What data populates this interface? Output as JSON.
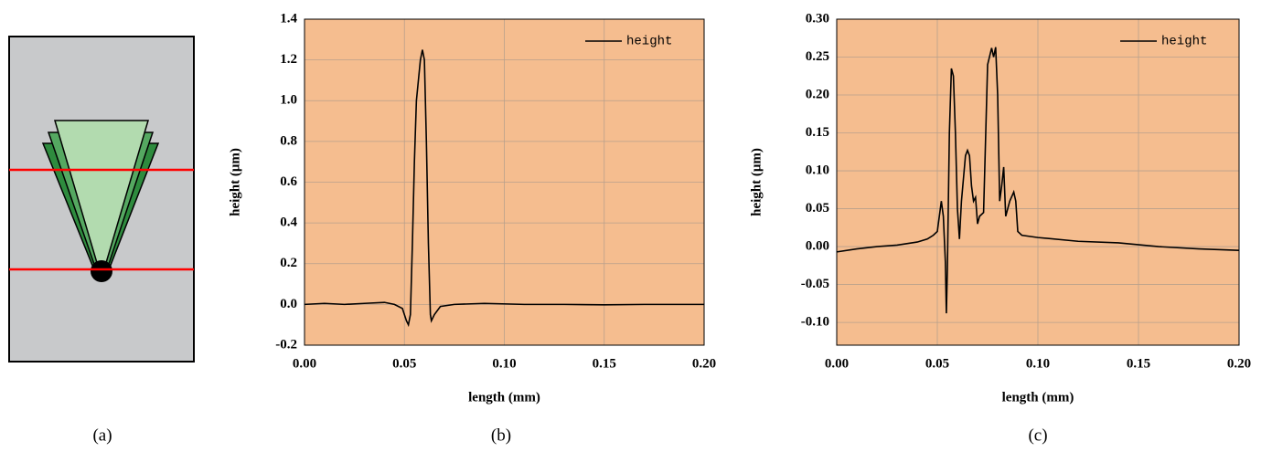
{
  "panel_labels": [
    "(a)",
    "(b)",
    "(c)"
  ],
  "chart_data": [
    {
      "type": "line",
      "xlabel": "length (mm)",
      "ylabel": "height (μm)",
      "xlim": [
        0,
        0.2
      ],
      "ylim": [
        -0.2,
        1.4
      ],
      "xticks": [
        {
          "value": 0,
          "label": "0.00"
        },
        0.05,
        {
          "value": 0.1,
          "label": "0.10"
        },
        0.15,
        {
          "value": 0.2,
          "label": "0.20"
        }
      ],
      "yticks": [
        -0.2,
        {
          "value": 0,
          "label": "0.0"
        },
        0.2,
        0.4,
        0.6,
        0.8,
        {
          "value": 1,
          "label": "1.0"
        },
        1.2,
        1.4
      ],
      "grid": true,
      "legend": "upper right",
      "background": "#f5bd8f",
      "x": [
        0,
        0.01,
        0.02,
        0.03,
        0.04,
        0.045,
        0.049,
        0.051,
        0.052,
        0.053,
        0.054,
        0.055,
        0.056,
        0.057,
        0.058,
        0.059,
        0.06,
        0.061,
        0.062,
        0.063,
        0.0635,
        0.065,
        0.068,
        0.075,
        0.09,
        0.11,
        0.13,
        0.15,
        0.17,
        0.2
      ],
      "series": [
        {
          "name": "height",
          "color": "#000000",
          "values": [
            0,
            0.005,
            0,
            0.005,
            0.01,
            0,
            -0.02,
            -0.08,
            -0.1,
            -0.05,
            0.3,
            0.7,
            1.0,
            1.1,
            1.2,
            1.25,
            1.2,
            0.8,
            0.3,
            -0.05,
            -0.08,
            -0.05,
            -0.01,
            0,
            0.005,
            0,
            0,
            -0.002,
            0,
            0
          ]
        }
      ]
    },
    {
      "type": "line",
      "xlabel": "length (mm)",
      "ylabel": "height (μm)",
      "xlim": [
        0,
        0.2
      ],
      "ylim": [
        -0.13,
        0.3
      ],
      "xticks": [
        {
          "value": 0,
          "label": "0.00"
        },
        0.05,
        {
          "value": 0.1,
          "label": "0.10"
        },
        0.15,
        {
          "value": 0.2,
          "label": "0.20"
        }
      ],
      "yticks": [
        {
          "value": -0.1,
          "label": "-0.10"
        },
        -0.05,
        {
          "value": 0,
          "label": "0.00"
        },
        0.05,
        {
          "value": 0.1,
          "label": "0.10"
        },
        0.15,
        {
          "value": 0.2,
          "label": "0.20"
        },
        0.25,
        {
          "value": 0.3,
          "label": "0.30"
        }
      ],
      "grid": true,
      "legend": "upper right",
      "background": "#f5bd8f",
      "x": [
        0,
        0.01,
        0.02,
        0.03,
        0.04,
        0.045,
        0.048,
        0.05,
        0.051,
        0.052,
        0.053,
        0.054,
        0.0545,
        0.055,
        0.056,
        0.057,
        0.058,
        0.059,
        0.06,
        0.061,
        0.062,
        0.064,
        0.065,
        0.066,
        0.067,
        0.068,
        0.069,
        0.07,
        0.071,
        0.073,
        0.075,
        0.077,
        0.078,
        0.079,
        0.08,
        0.081,
        0.082,
        0.083,
        0.084,
        0.086,
        0.088,
        0.089,
        0.09,
        0.092,
        0.1,
        0.12,
        0.14,
        0.16,
        0.18,
        0.2
      ],
      "series": [
        {
          "name": "height",
          "color": "#000000",
          "values": [
            -0.007,
            -0.003,
            0,
            0.002,
            0.006,
            0.01,
            0.015,
            0.02,
            0.04,
            0.06,
            0.04,
            -0.02,
            -0.088,
            -0.03,
            0.15,
            0.235,
            0.225,
            0.15,
            0.05,
            0.01,
            0.06,
            0.12,
            0.127,
            0.12,
            0.08,
            0.06,
            0.065,
            0.03,
            0.04,
            0.045,
            0.24,
            0.262,
            0.25,
            0.263,
            0.2,
            0.06,
            0.08,
            0.105,
            0.04,
            0.06,
            0.072,
            0.06,
            0.02,
            0.015,
            0.012,
            0.007,
            0.005,
            0,
            -0.003,
            -0.005
          ]
        }
      ]
    }
  ]
}
